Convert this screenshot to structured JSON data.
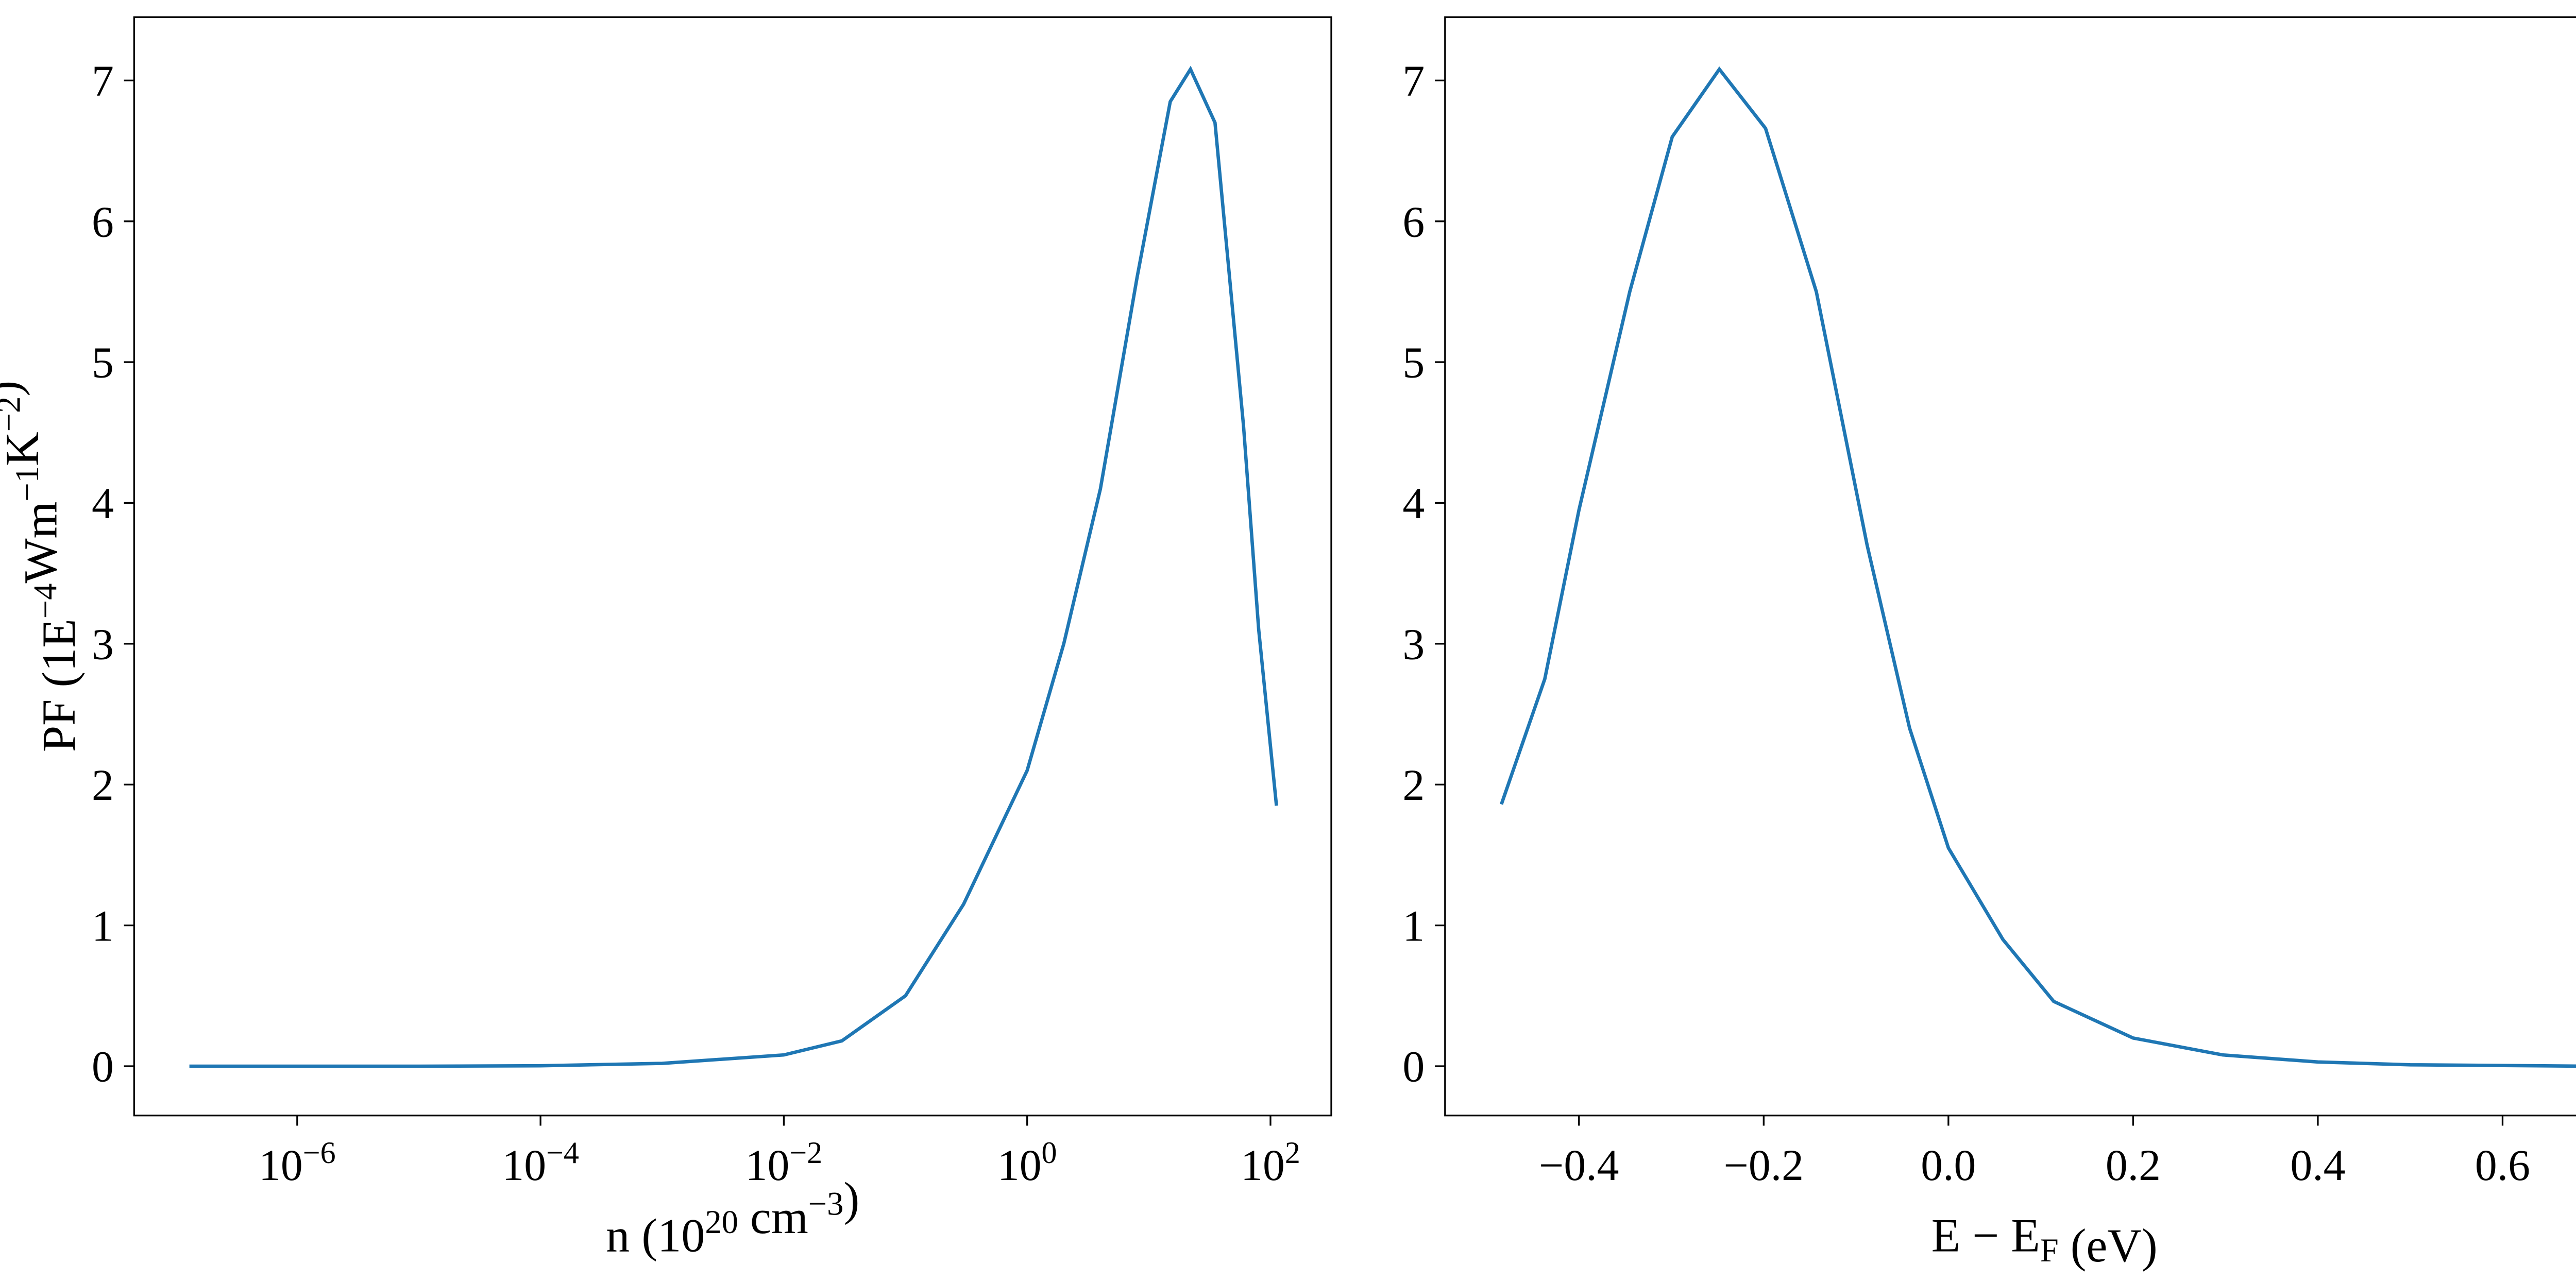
{
  "chart_data": [
    {
      "type": "line",
      "xscale": "log",
      "xlabel": "n (1020 cm−3)",
      "ylabel": "PF (1E−4Wm−1K−2)",
      "x": [
        1.3e-07,
        1e-06,
        1e-05,
        0.0001,
        0.001,
        0.01,
        0.03,
        0.1,
        0.3,
        1,
        2,
        4,
        8,
        15,
        22,
        35,
        60,
        80,
        112
      ],
      "series": [
        {
          "color": "#1f77b4",
          "values": [
            0,
            0,
            0,
            0.003,
            0.02,
            0.08,
            0.18,
            0.5,
            1.15,
            2.1,
            3.0,
            4.1,
            5.6,
            6.85,
            7.08,
            6.7,
            4.55,
            3.1,
            1.85
          ]
        }
      ],
      "xlim": [
        4.57e-08,
        316
      ],
      "ylim": [
        -0.35,
        7.45
      ],
      "xticks": [
        {
          "value": 1e-06,
          "label": "10−6"
        },
        {
          "value": 0.0001,
          "label": "10−4"
        },
        {
          "value": 0.01,
          "label": "10−2"
        },
        {
          "value": 1,
          "label": "100"
        },
        {
          "value": 100,
          "label": "102"
        }
      ],
      "yticks": [
        0,
        1,
        2,
        3,
        4,
        5,
        6,
        7
      ]
    },
    {
      "type": "line",
      "xscale": "linear",
      "xlabel": "E − EF (eV)",
      "x": [
        -0.484,
        -0.437,
        -0.4,
        -0.345,
        -0.299,
        -0.248,
        -0.198,
        -0.143,
        -0.088,
        -0.042,
        0,
        0.059,
        0.114,
        0.2,
        0.297,
        0.4,
        0.5,
        0.694
      ],
      "series": [
        {
          "color": "#1f77b4",
          "values": [
            1.86,
            2.75,
            3.95,
            5.5,
            6.6,
            7.08,
            6.66,
            5.5,
            3.7,
            2.4,
            1.55,
            0.9,
            0.46,
            0.2,
            0.08,
            0.03,
            0.01,
            0
          ]
        }
      ],
      "xlim": [
        -0.545,
        0.753
      ],
      "ylim": [
        -0.35,
        7.45
      ],
      "xticks": [
        {
          "value": -0.4,
          "label": "−0.4"
        },
        {
          "value": -0.2,
          "label": "−0.2"
        },
        {
          "value": 0,
          "label": "0.0"
        },
        0.2,
        0.4,
        0.6
      ],
      "yticks": [
        0,
        1,
        2,
        3,
        4,
        5,
        6,
        7
      ]
    }
  ]
}
